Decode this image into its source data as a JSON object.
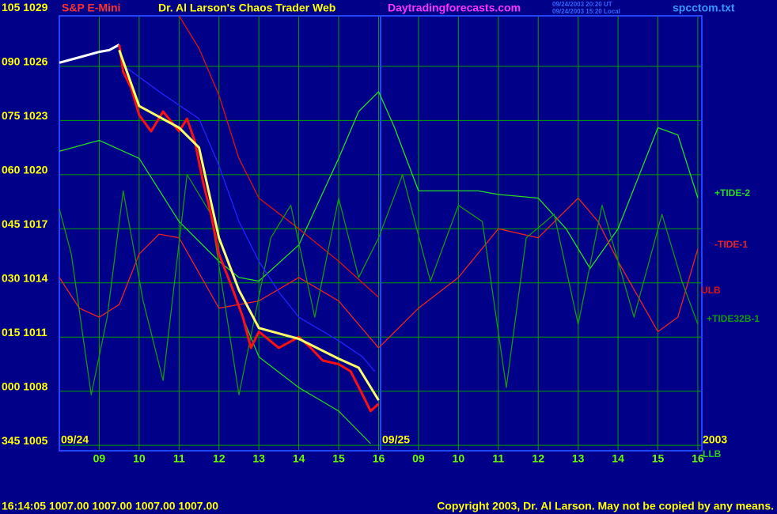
{
  "chart_data": {
    "type": "line",
    "title": "S&P E-Mini",
    "subtitle": "Dr. Al Larson's Chaos Trader Web",
    "website": "Daytradingforecasts.com",
    "timestamps": [
      "09/24/2003 20:20 UT",
      "09/24/2003 15:20 Local"
    ],
    "filename": "spcctom.txt",
    "date_labels": [
      "09/24",
      "09/25",
      "2003"
    ],
    "status": "16:14:05 1007.00 1007.00 1007.00 1007.00",
    "copyright": "Copyright 2003, Dr. Al Larson. May not be copied by any means.",
    "grid": true,
    "grid_color": "#00a000",
    "xlim": [
      0,
      16.1
    ],
    "ylim": [
      1004.7,
      1028.8
    ],
    "xticks": [
      {
        "value": 1,
        "label": "09"
      },
      {
        "value": 2,
        "label": "10"
      },
      {
        "value": 3,
        "label": "11"
      },
      {
        "value": 4,
        "label": "12"
      },
      {
        "value": 5,
        "label": "13"
      },
      {
        "value": 6,
        "label": "14"
      },
      {
        "value": 7,
        "label": "15"
      },
      {
        "value": 8,
        "label": "16"
      },
      {
        "value": 9,
        "label": "09"
      },
      {
        "value": 10,
        "label": "10"
      },
      {
        "value": 11,
        "label": "11"
      },
      {
        "value": 12,
        "label": "12"
      },
      {
        "value": 13,
        "label": "13"
      },
      {
        "value": 14,
        "label": "14"
      },
      {
        "value": 15,
        "label": "15"
      },
      {
        "value": 16,
        "label": "16"
      }
    ],
    "yticks": [
      {
        "value": 1005,
        "label": "345 1005"
      },
      {
        "value": 1008,
        "label": "000 1008"
      },
      {
        "value": 1011,
        "label": "015 1011"
      },
      {
        "value": 1014,
        "label": "030 1014"
      },
      {
        "value": 1017,
        "label": "045 1017"
      },
      {
        "value": 1020,
        "label": "060 1020"
      },
      {
        "value": 1023,
        "label": "075 1023"
      },
      {
        "value": 1026,
        "label": "090 1026"
      },
      {
        "value": 1029,
        "label": "105 1029"
      }
    ],
    "series": [
      {
        "name": "+TIDE-2",
        "color": "#22dd22",
        "x": [
          0,
          1,
          2,
          3,
          4,
          4.5,
          5,
          6,
          7,
          7.5,
          8,
          8.4,
          9,
          10,
          10.5,
          11,
          12,
          12.7,
          13.3,
          14,
          15,
          15.5,
          16
        ],
        "values": [
          1021.3,
          1021.9,
          1020.9,
          1017.4,
          1015.2,
          1014.3,
          1014.1,
          1016.1,
          1020.9,
          1023.5,
          1024.6,
          1022.6,
          1019.1,
          1019.1,
          1019.1,
          1018.9,
          1018.7,
          1017,
          1014.8,
          1017,
          1022.6,
          1022.2,
          1018.7
        ]
      },
      {
        "name": "-TIDE-1",
        "color": "#ee2222",
        "x": [
          0,
          0.5,
          1,
          1.5,
          2,
          2.5,
          3,
          4,
          5,
          6,
          7,
          8,
          9,
          10,
          11,
          12,
          13,
          13.5,
          14,
          15,
          15.5,
          16
        ],
        "values": [
          1014.3,
          1012.6,
          1012.1,
          1012.8,
          1015.6,
          1016.7,
          1016.5,
          1012.6,
          1013,
          1014.3,
          1013,
          1010.4,
          1012.6,
          1014.3,
          1017,
          1016.5,
          1018.7,
          1017.4,
          1015.2,
          1011.3,
          1012.1,
          1015.9
        ]
      },
      {
        "name": "ULB",
        "color": "#dd1111",
        "x": [
          3,
          3.5,
          4,
          4.5,
          5,
          6,
          7,
          8
        ],
        "values": [
          1028.8,
          1027,
          1024.4,
          1020.9,
          1018.7,
          1017,
          1015.2,
          1013.2
        ]
      },
      {
        "name": "+TIDE32B-1",
        "color": "#119911",
        "x": [
          0,
          0.3,
          0.8,
          1.2,
          1.6,
          2.1,
          2.6,
          3.2,
          3.8,
          4.5,
          5.3,
          5.8,
          6.4,
          7,
          7.5,
          8,
          8.6,
          9.3,
          10,
          10.6,
          11.2,
          11.7,
          12.4,
          13,
          13.6,
          14.4,
          15.1,
          15.6,
          16
        ],
        "values": [
          1018.1,
          1015.6,
          1007.8,
          1012.1,
          1019.1,
          1013,
          1008.6,
          1020,
          1017.8,
          1007.8,
          1016.5,
          1018.3,
          1012.1,
          1018.7,
          1014.3,
          1016.5,
          1020,
          1014.1,
          1018.3,
          1017.4,
          1008.2,
          1016.5,
          1017.8,
          1011.7,
          1018.3,
          1012.1,
          1017.8,
          1014.1,
          1011.7
        ]
      },
      {
        "name": "LLB",
        "color": "#22cc22",
        "x": [
          4.5,
          5,
          6,
          7,
          7.8
        ],
        "values": [
          1012.6,
          1009.9,
          1008.2,
          1006.9,
          1005.1
        ]
      },
      {
        "color": "#2222ff",
        "x": [
          1.7,
          2.5,
          3.5,
          4,
          4.5,
          5,
          5.5,
          6,
          7,
          7.6,
          7.9
        ],
        "values": [
          1025.9,
          1024.6,
          1023.1,
          1020.5,
          1017.4,
          1015.2,
          1013.5,
          1012.1,
          1010.8,
          1009.9,
          1009.1
        ]
      },
      {
        "color": "#ffffff",
        "x": [
          0,
          0.5,
          1,
          1.25,
          1.5
        ],
        "values": [
          1026.2,
          1026.5,
          1026.8,
          1026.9,
          1027.2
        ]
      },
      {
        "color": "#ff1010",
        "x": [
          1.5,
          1.6,
          1.8,
          2,
          2.3,
          2.6,
          3,
          3.2,
          3.4,
          3.6,
          3.8,
          4,
          4.3,
          4.6,
          4.8,
          5,
          5.5,
          6,
          6.3,
          6.6,
          7,
          7.3,
          7.6,
          7.8,
          8
        ],
        "values": [
          1027.2,
          1025.7,
          1024.8,
          1023.3,
          1022.4,
          1023.5,
          1022.4,
          1023.1,
          1021.8,
          1019.6,
          1017.8,
          1015.6,
          1013.9,
          1012.1,
          1010.4,
          1011.3,
          1010.4,
          1011,
          1010.4,
          1009.7,
          1009.5,
          1009.1,
          1007.8,
          1006.9,
          1007.3
        ]
      },
      {
        "color": "#ffff66",
        "x": [
          1.5,
          2,
          3,
          3.5,
          4,
          4.5,
          5,
          6,
          7,
          7.5,
          8
        ],
        "values": [
          1026.9,
          1023.8,
          1022.6,
          1021.5,
          1016.5,
          1013.6,
          1011.5,
          1010.9,
          1009.8,
          1009.3,
          1007.5
        ]
      }
    ]
  }
}
